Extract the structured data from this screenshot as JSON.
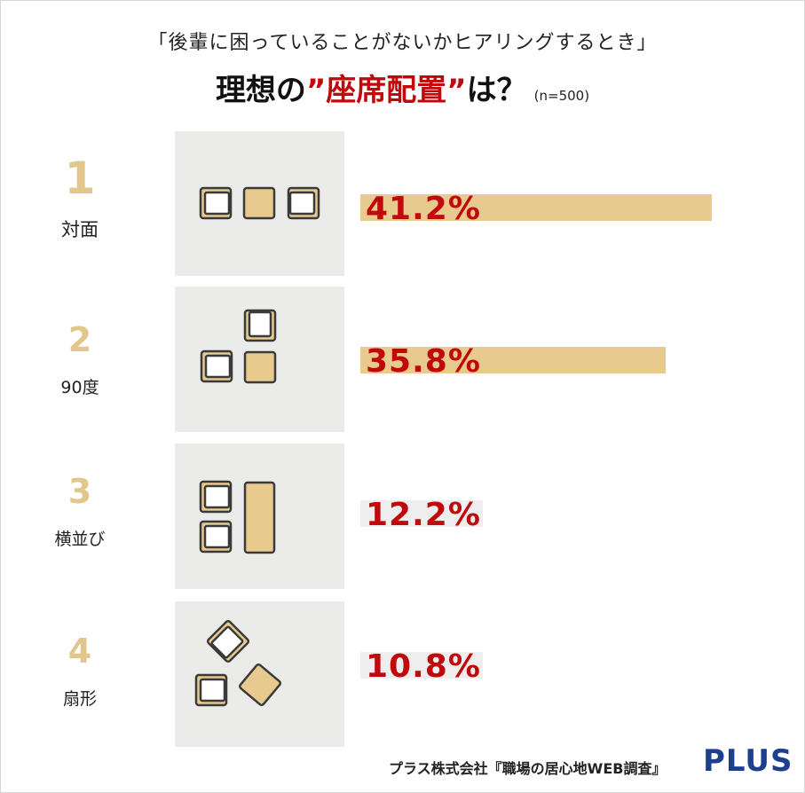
{
  "header": {
    "subtitle": "「後輩に困っていることがないかヒアリングするとき」",
    "title_pre": "理想の",
    "title_hl": "”座席配置”",
    "title_post": "は？",
    "sample": "(n=500)"
  },
  "chart_data": {
    "type": "bar",
    "orientation": "horizontal",
    "categories": [
      "対面",
      "90度",
      "横並び",
      "扇形"
    ],
    "ranks": [
      "1",
      "2",
      "3",
      "4"
    ],
    "values": [
      41.2,
      35.8,
      12.2,
      10.8
    ],
    "value_labels": [
      "41.2%",
      "35.8%",
      "12.2%",
      "10.8%"
    ],
    "unit": "%",
    "xlim": [
      0,
      41.2
    ],
    "colors": {
      "bar": "#e8c98e",
      "value_text": "#c0080d",
      "rank_number": "#e2c78c",
      "panel": "#ebebea"
    }
  },
  "footer": {
    "source": "プラス株式会社『職場の居心地WEB調査』",
    "logo": "PLUS"
  }
}
